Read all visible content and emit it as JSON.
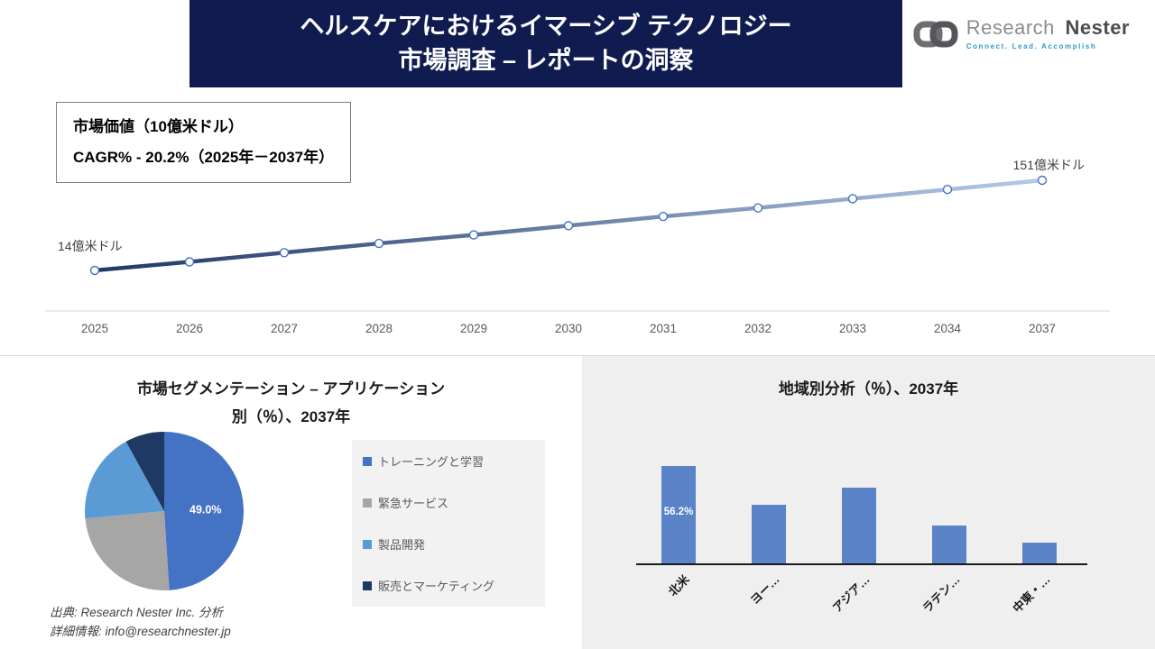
{
  "banner": {
    "title_line1": "ヘルスケアにおけるイマーシブ テクノロジー",
    "title_line2": "市場調査 – レポートの洞察"
  },
  "logo": {
    "brand_first": "Research",
    "brand_second": "Nester",
    "tagline": "Connect. Lead. Accomplish"
  },
  "info_box": {
    "line1": "市場価値（10億米ドル）",
    "line2": "CAGR% - 20.2%（2025年－2037年）"
  },
  "chart_data": [
    {
      "type": "line",
      "title": "市場価値（10億米ドル）",
      "x": [
        "2025",
        "2026",
        "2027",
        "2028",
        "2029",
        "2030",
        "2031",
        "2032",
        "2033",
        "2034",
        "2037"
      ],
      "values": [
        14,
        27,
        41,
        55,
        68,
        82,
        96,
        109,
        123,
        137,
        151
      ],
      "start_label": "14億米ドル",
      "end_label": "151億米ドル",
      "line_gradient": [
        "#1F3864",
        "#B7C9E8"
      ],
      "marker_color": "#4472C4",
      "axis_color": "#D6D6D6"
    },
    {
      "type": "pie",
      "title_line1": "市場セグメンテーション – アプリケーション",
      "title_line2": "別（％）、2037年",
      "labels": [
        "トレーニングと学習",
        "緊急サービス",
        "製品開発",
        "販売とマーケティング"
      ],
      "values": [
        49.0,
        24.5,
        18.5,
        8.0
      ],
      "colors": [
        "#4472C4",
        "#A6A6A6",
        "#5B9BD5",
        "#203864"
      ],
      "data_label": "49.0%",
      "legend_position": "right"
    },
    {
      "type": "bar",
      "title": "地域別分析（％）、2037年",
      "categories": [
        "北米",
        "ヨー…",
        "アジア…",
        "ラテン…",
        "中東・…"
      ],
      "values": [
        56.2,
        34,
        44,
        22,
        12
      ],
      "data_labels": [
        "56.2%",
        "",
        "",
        "",
        ""
      ],
      "bar_color": "#5B83C8",
      "ylim": [
        0,
        60
      ]
    }
  ],
  "footer": {
    "source": "出典: Research Nester Inc. 分析",
    "contact": "詳細情報: info@researchnester.jp"
  }
}
